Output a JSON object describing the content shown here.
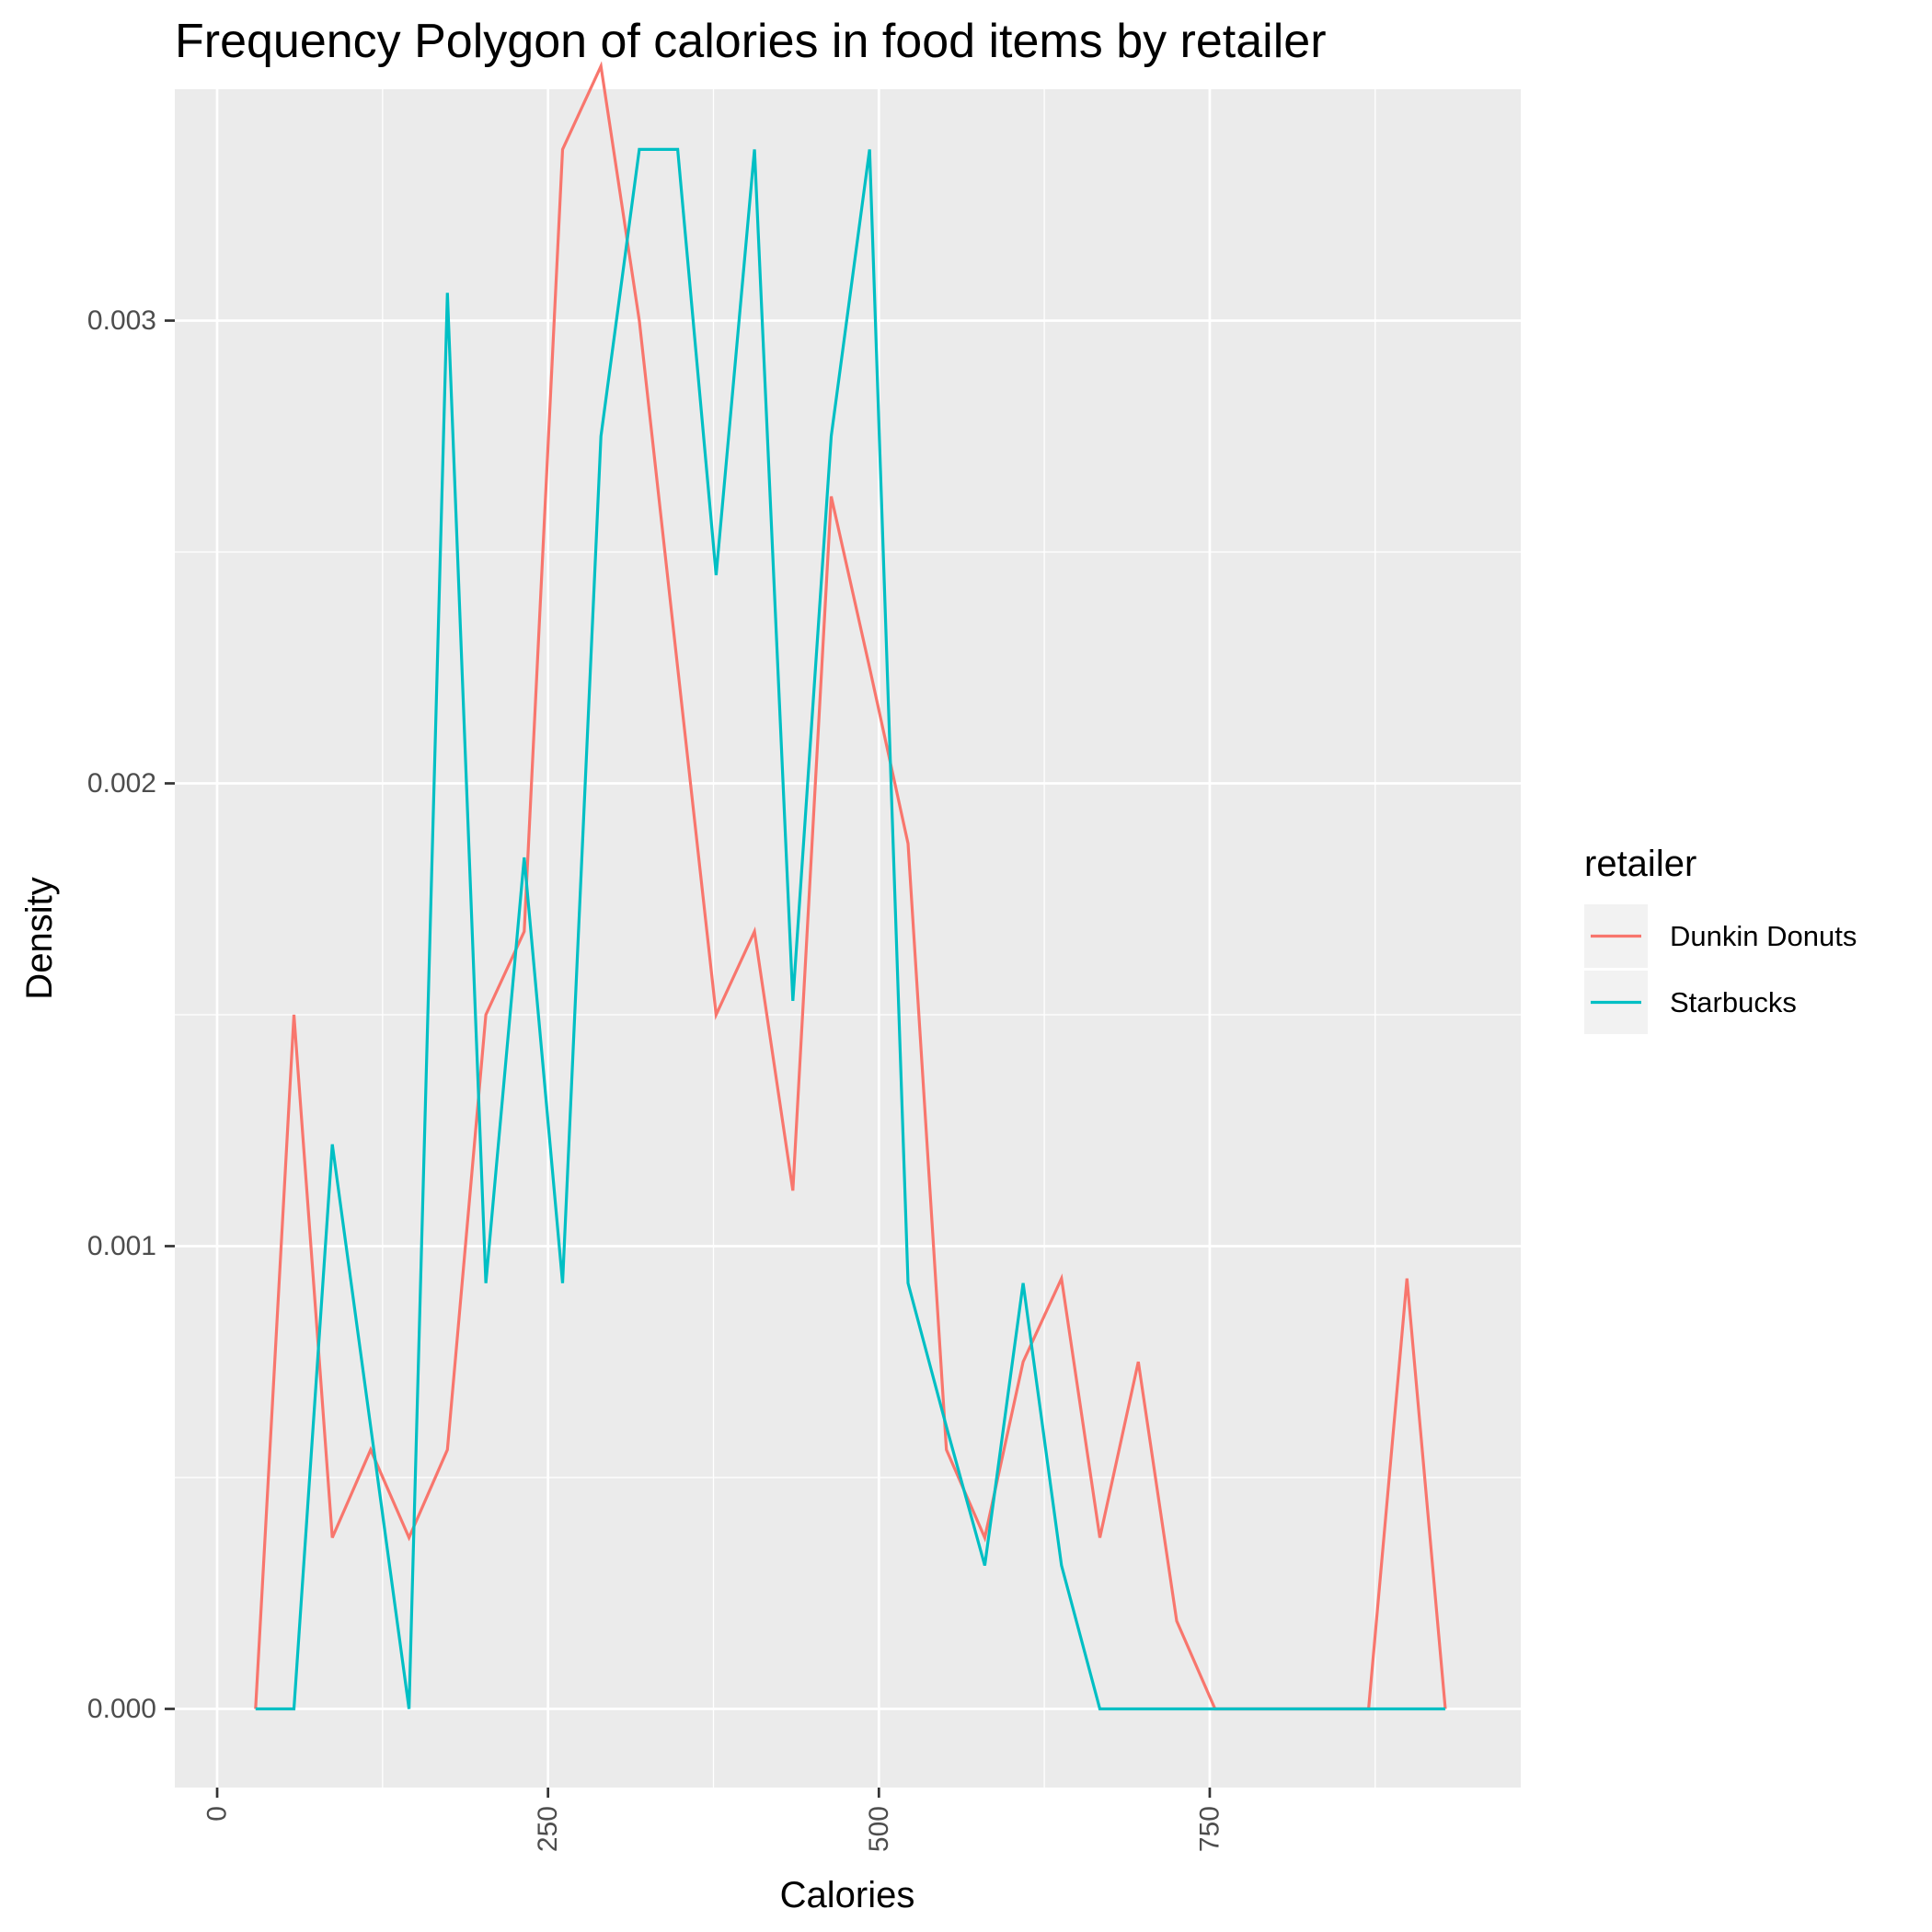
{
  "chart_data": {
    "type": "line",
    "title": "Frequency Polygon of calories in food items by retailer",
    "xlabel": "Calories",
    "ylabel": "Density",
    "xlim": [
      -32,
      985
    ],
    "ylim": [
      -0.00017,
      0.0035
    ],
    "x_ticks": [
      0,
      250,
      500,
      750
    ],
    "x_tick_labels": [
      "0",
      "250",
      "500",
      "750"
    ],
    "y_ticks": [
      0.0,
      0.001,
      0.002,
      0.003
    ],
    "y_tick_labels": [
      "0.000",
      "0.001",
      "0.002",
      "0.003"
    ],
    "grid": true,
    "legend_title": "retailer",
    "legend_position": "right",
    "x": [
      29,
      58,
      87,
      116,
      145,
      174,
      203,
      232,
      261,
      290,
      319,
      348,
      377,
      406,
      435,
      464,
      493,
      522,
      551,
      580,
      609,
      638,
      667,
      696,
      725,
      754,
      783,
      812,
      841,
      870,
      899,
      928
    ],
    "series": [
      {
        "name": "Dunkin Donuts",
        "color": "#F8766D",
        "values": [
          0.0,
          0.0015,
          0.00037,
          0.00056,
          0.00037,
          0.00056,
          0.0015,
          0.00168,
          0.00337,
          0.00355,
          0.003,
          0.00225,
          0.0015,
          0.00168,
          0.00112,
          0.00262,
          0.00225,
          0.00187,
          0.00056,
          0.00037,
          0.00075,
          0.00093,
          0.00037,
          0.00075,
          0.00019,
          0.0,
          0.0,
          0.0,
          0.0,
          0.0,
          0.00093,
          0.0
        ]
      },
      {
        "name": "Starbucks",
        "color": "#00BFC4",
        "values": [
          0.0,
          0.0,
          0.00122,
          0.00061,
          0.0,
          0.00306,
          0.00092,
          0.00184,
          0.00092,
          0.00275,
          0.00337,
          0.00337,
          0.00245,
          0.00337,
          0.00153,
          0.00275,
          0.00337,
          0.00092,
          0.00061,
          0.00031,
          0.00092,
          0.00031,
          0.0,
          0.0,
          0.0,
          0.0,
          0.0,
          0.0,
          0.0,
          0.0,
          0.0,
          0.0
        ]
      }
    ]
  }
}
